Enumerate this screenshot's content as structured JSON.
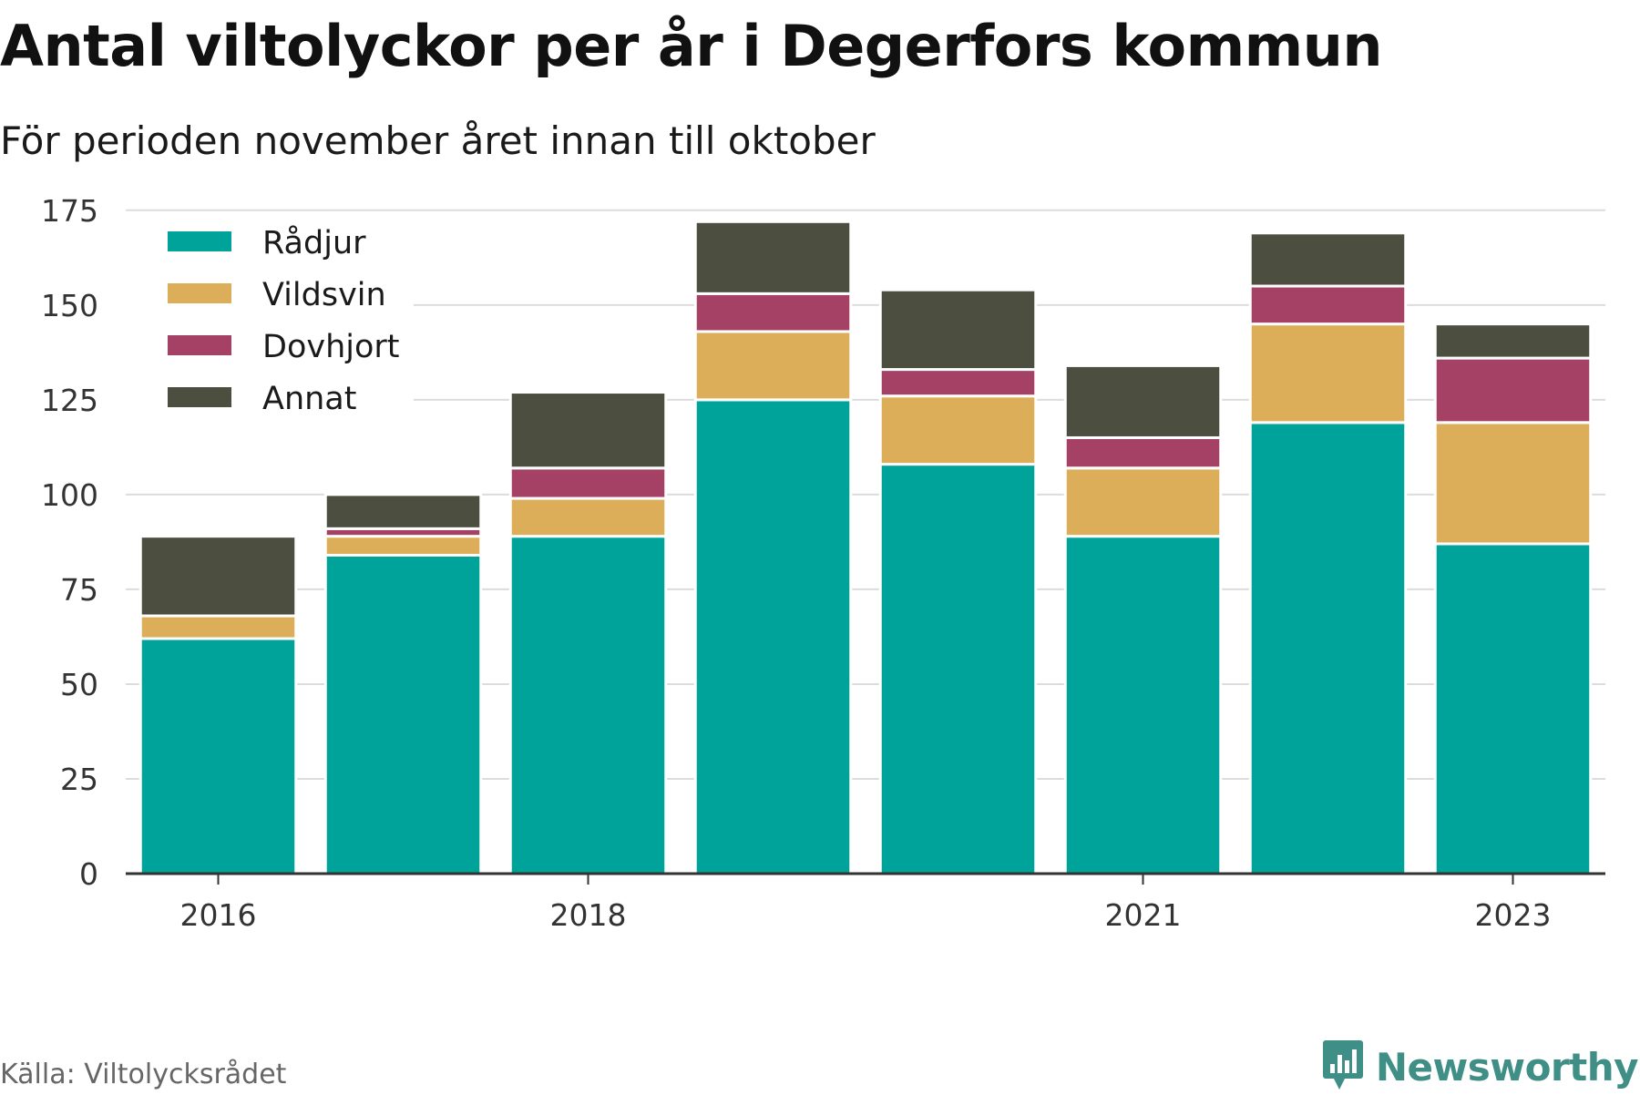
{
  "title": "Antal viltolyckor per år i Degerfors kommun",
  "subtitle": "För perioden november året innan till oktober",
  "source": "Källa: Viltolycksrådet",
  "brand": {
    "name": "Newsworthy",
    "icon": "newsworthy-logo-icon",
    "color": "#3f8f86"
  },
  "chart_data": {
    "type": "bar",
    "stacked": true,
    "categories": [
      "2016",
      "2017",
      "2018",
      "2019",
      "2020",
      "2021",
      "2022",
      "2023"
    ],
    "x_tick_labels": [
      "2016",
      "2018",
      "2021",
      "2023"
    ],
    "ylim": [
      0,
      180
    ],
    "y_ticks": [
      0,
      25,
      50,
      75,
      100,
      125,
      150,
      175
    ],
    "grid": true,
    "legend_position": "top-left",
    "series": [
      {
        "name": "Rådjur",
        "color": "#00a39a",
        "values": [
          62,
          84,
          89,
          125,
          108,
          89,
          119,
          87
        ]
      },
      {
        "name": "Vildsvin",
        "color": "#dcae5a",
        "values": [
          6,
          5,
          10,
          18,
          18,
          18,
          26,
          32
        ]
      },
      {
        "name": "Dovhjort",
        "color": "#a64166",
        "values": [
          0,
          2,
          8,
          10,
          7,
          8,
          10,
          17
        ]
      },
      {
        "name": "Annat",
        "color": "#4c4f40",
        "values": [
          21,
          9,
          20,
          19,
          21,
          19,
          14,
          9
        ]
      }
    ],
    "xlabel": "",
    "ylabel": ""
  }
}
